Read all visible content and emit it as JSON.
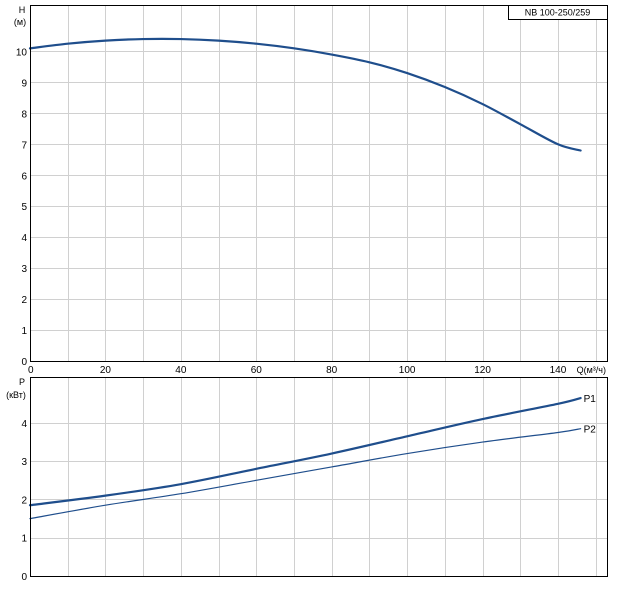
{
  "chart_data": [
    {
      "type": "line",
      "title": "NB 100-250/259",
      "ylabel": "H",
      "ylabel_unit": "(м)",
      "xlabel": "Q(м³/ч)",
      "xlim": [
        0,
        153
      ],
      "ylim": [
        0,
        11.5
      ],
      "x_ticks": [
        0,
        20,
        40,
        60,
        80,
        100,
        120,
        140
      ],
      "y_ticks": [
        0,
        1,
        2,
        3,
        4,
        5,
        6,
        7,
        8,
        9,
        10
      ],
      "x_minor_step": 10,
      "grid": true,
      "color": "#1f4e8c",
      "series": [
        {
          "x": [
            0,
            10,
            20,
            30,
            40,
            50,
            60,
            70,
            80,
            90,
            100,
            110,
            120,
            130,
            140,
            146
          ],
          "values": [
            10.1,
            10.25,
            10.35,
            10.4,
            10.4,
            10.35,
            10.25,
            10.1,
            9.9,
            9.65,
            9.3,
            8.85,
            8.3,
            7.65,
            7.0,
            6.8
          ]
        }
      ]
    },
    {
      "type": "line",
      "ylabel": "P",
      "ylabel_unit": "(кВт)",
      "xlim": [
        0,
        153
      ],
      "ylim": [
        0,
        5.2
      ],
      "y_ticks": [
        0,
        1,
        2,
        3,
        4
      ],
      "x_minor_step": 10,
      "grid": true,
      "color": "#1f4e8c",
      "series": [
        {
          "name": "P1",
          "x": [
            0,
            20,
            40,
            60,
            80,
            100,
            120,
            140,
            146
          ],
          "values": [
            1.85,
            2.1,
            2.4,
            2.8,
            3.2,
            3.65,
            4.1,
            4.5,
            4.65
          ]
        },
        {
          "name": "P2",
          "x": [
            0,
            20,
            40,
            60,
            80,
            100,
            120,
            140,
            146
          ],
          "values": [
            1.5,
            1.85,
            2.15,
            2.5,
            2.85,
            3.2,
            3.5,
            3.75,
            3.85
          ]
        }
      ]
    }
  ]
}
